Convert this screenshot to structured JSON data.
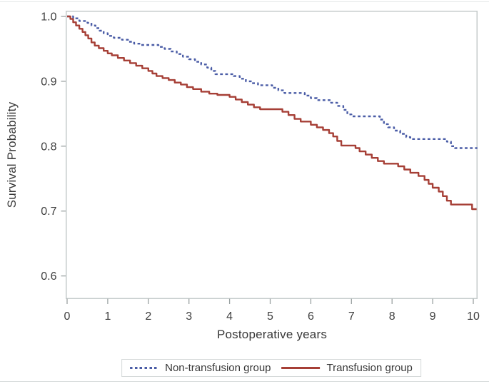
{
  "chart_data": {
    "type": "line",
    "subtype": "kaplan-meier-step",
    "title": "",
    "xlabel": "Postoperative years",
    "ylabel": "Survival Probability",
    "xlim": [
      0,
      10.1
    ],
    "ylim": [
      0.55,
      1.0
    ],
    "x_ticks": [
      0,
      1,
      2,
      3,
      4,
      5,
      6,
      7,
      8,
      9,
      10
    ],
    "y_ticks": [
      1.0,
      0.9,
      0.8,
      0.7,
      0.6
    ],
    "y_tick_labels": [
      "1.0",
      "0.9",
      "0.8",
      "0.7",
      "0.6"
    ],
    "grid": false,
    "legend_position": "bottom-center",
    "series": [
      {
        "id": "non-transfusion",
        "name": "Non-transfusion group",
        "color": "#4a5ca6",
        "line_style": "dashed",
        "end_x": 10.1,
        "points": [
          [
            0,
            1.0
          ],
          [
            0.15,
            0.997
          ],
          [
            0.3,
            0.993
          ],
          [
            0.5,
            0.99
          ],
          [
            0.6,
            0.986
          ],
          [
            0.7,
            0.982
          ],
          [
            0.8,
            0.978
          ],
          [
            0.9,
            0.974
          ],
          [
            1.0,
            0.97
          ],
          [
            1.15,
            0.967
          ],
          [
            1.35,
            0.964
          ],
          [
            1.5,
            0.961
          ],
          [
            1.65,
            0.958
          ],
          [
            1.8,
            0.956
          ],
          [
            2.25,
            0.953
          ],
          [
            2.4,
            0.95
          ],
          [
            2.55,
            0.946
          ],
          [
            2.7,
            0.942
          ],
          [
            2.85,
            0.938
          ],
          [
            3.0,
            0.934
          ],
          [
            3.15,
            0.93
          ],
          [
            3.3,
            0.926
          ],
          [
            3.45,
            0.921
          ],
          [
            3.55,
            0.916
          ],
          [
            3.65,
            0.911
          ],
          [
            4.1,
            0.908
          ],
          [
            4.25,
            0.904
          ],
          [
            4.4,
            0.9
          ],
          [
            4.55,
            0.897
          ],
          [
            4.7,
            0.894
          ],
          [
            5.05,
            0.89
          ],
          [
            5.2,
            0.886
          ],
          [
            5.35,
            0.882
          ],
          [
            5.85,
            0.878
          ],
          [
            6.0,
            0.874
          ],
          [
            6.15,
            0.871
          ],
          [
            6.5,
            0.867
          ],
          [
            6.65,
            0.862
          ],
          [
            6.8,
            0.856
          ],
          [
            6.9,
            0.849
          ],
          [
            7.0,
            0.846
          ],
          [
            7.7,
            0.841
          ],
          [
            7.8,
            0.834
          ],
          [
            7.9,
            0.829
          ],
          [
            8.05,
            0.824
          ],
          [
            8.2,
            0.819
          ],
          [
            8.35,
            0.814
          ],
          [
            8.45,
            0.811
          ],
          [
            9.35,
            0.807
          ],
          [
            9.45,
            0.8
          ],
          [
            9.55,
            0.797
          ]
        ]
      },
      {
        "id": "transfusion",
        "name": "Transfusion group",
        "color": "#a63f36",
        "line_style": "solid",
        "end_x": 10.08,
        "points": [
          [
            0,
            1.0
          ],
          [
            0.08,
            0.996
          ],
          [
            0.15,
            0.991
          ],
          [
            0.22,
            0.986
          ],
          [
            0.3,
            0.981
          ],
          [
            0.38,
            0.976
          ],
          [
            0.45,
            0.971
          ],
          [
            0.52,
            0.966
          ],
          [
            0.6,
            0.96
          ],
          [
            0.68,
            0.955
          ],
          [
            0.78,
            0.951
          ],
          [
            0.9,
            0.947
          ],
          [
            1.0,
            0.943
          ],
          [
            1.1,
            0.94
          ],
          [
            1.25,
            0.936
          ],
          [
            1.4,
            0.932
          ],
          [
            1.55,
            0.928
          ],
          [
            1.7,
            0.924
          ],
          [
            1.85,
            0.92
          ],
          [
            2.0,
            0.916
          ],
          [
            2.1,
            0.912
          ],
          [
            2.2,
            0.908
          ],
          [
            2.35,
            0.905
          ],
          [
            2.5,
            0.902
          ],
          [
            2.65,
            0.898
          ],
          [
            2.8,
            0.895
          ],
          [
            2.95,
            0.891
          ],
          [
            3.1,
            0.888
          ],
          [
            3.3,
            0.884
          ],
          [
            3.5,
            0.881
          ],
          [
            3.7,
            0.879
          ],
          [
            4.0,
            0.876
          ],
          [
            4.15,
            0.872
          ],
          [
            4.3,
            0.868
          ],
          [
            4.45,
            0.864
          ],
          [
            4.6,
            0.86
          ],
          [
            4.75,
            0.857
          ],
          [
            5.3,
            0.853
          ],
          [
            5.45,
            0.848
          ],
          [
            5.6,
            0.842
          ],
          [
            5.75,
            0.838
          ],
          [
            6.0,
            0.833
          ],
          [
            6.15,
            0.829
          ],
          [
            6.3,
            0.825
          ],
          [
            6.45,
            0.82
          ],
          [
            6.55,
            0.815
          ],
          [
            6.65,
            0.808
          ],
          [
            6.75,
            0.801
          ],
          [
            7.1,
            0.797
          ],
          [
            7.2,
            0.792
          ],
          [
            7.35,
            0.787
          ],
          [
            7.5,
            0.782
          ],
          [
            7.65,
            0.777
          ],
          [
            7.8,
            0.773
          ],
          [
            8.15,
            0.769
          ],
          [
            8.3,
            0.764
          ],
          [
            8.45,
            0.759
          ],
          [
            8.65,
            0.754
          ],
          [
            8.8,
            0.748
          ],
          [
            8.9,
            0.742
          ],
          [
            9.0,
            0.736
          ],
          [
            9.15,
            0.73
          ],
          [
            9.25,
            0.723
          ],
          [
            9.35,
            0.716
          ],
          [
            9.45,
            0.71
          ],
          [
            9.97,
            0.703
          ]
        ]
      }
    ]
  },
  "colors": {
    "frame": "#c5cbcb",
    "tick": "#9aa2a2",
    "tick_text": "#3f3f3f",
    "axis_text": "#383838",
    "legend_border": "#d6dada",
    "background": "#ffffff"
  }
}
